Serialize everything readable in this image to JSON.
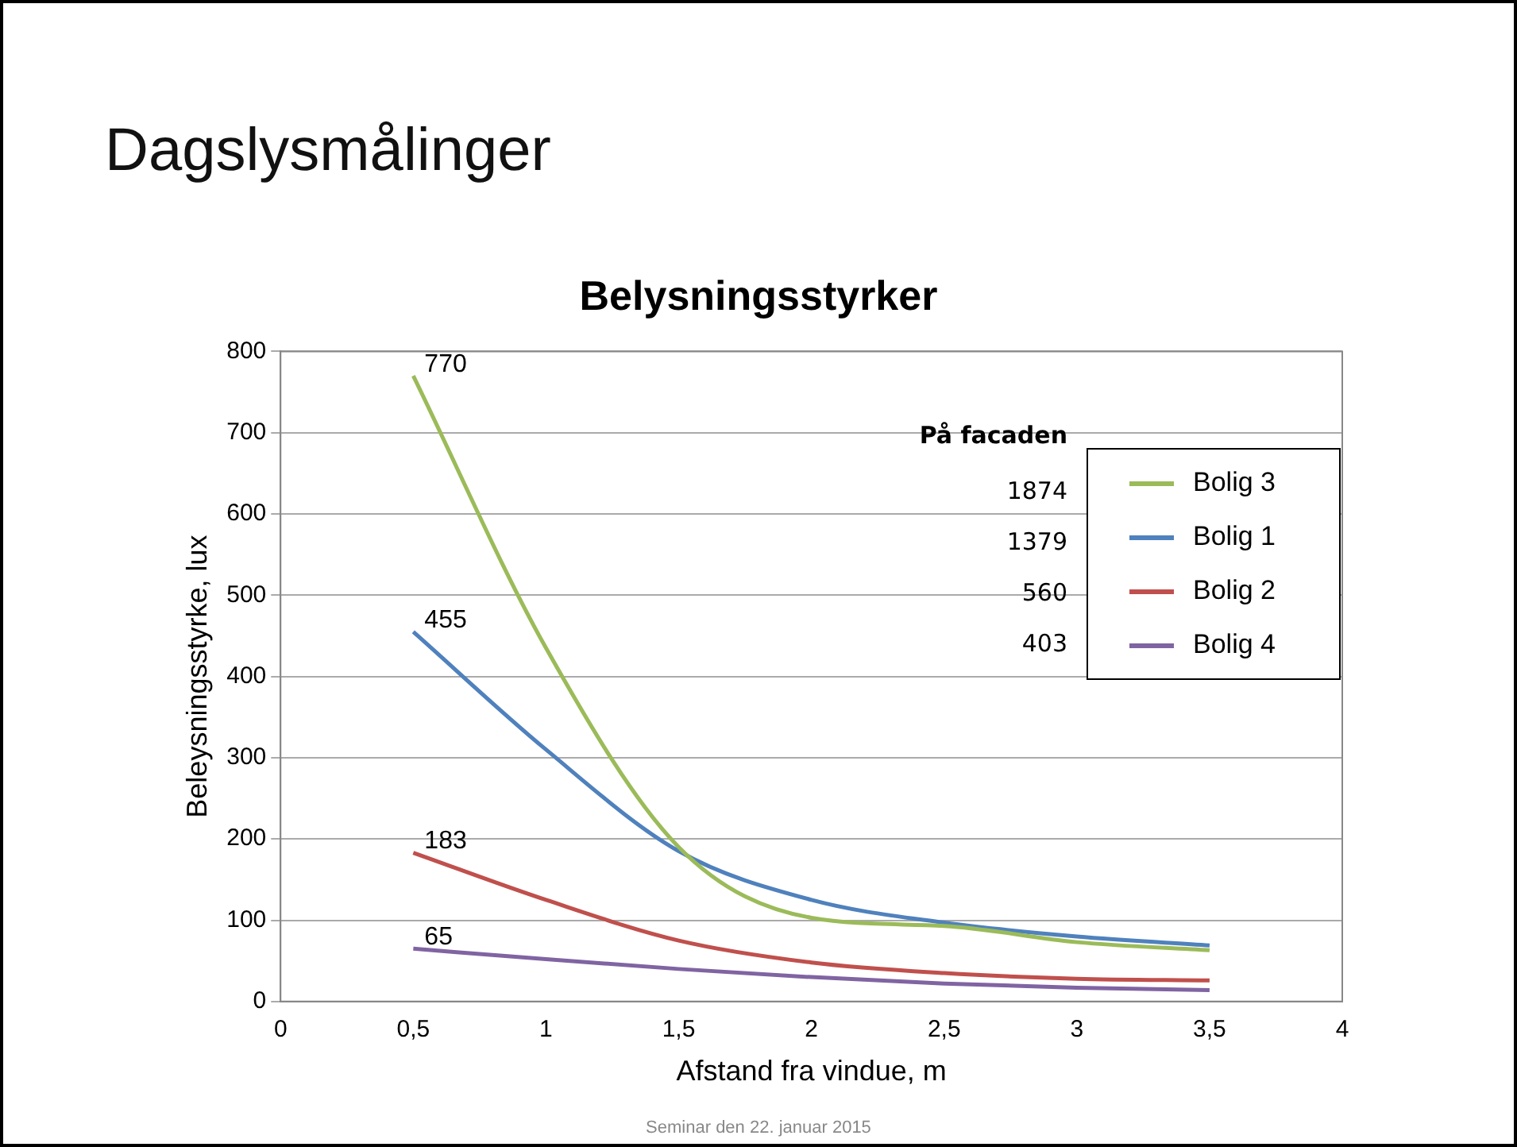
{
  "chart_data": {
    "type": "line",
    "title": "Dagslysmålinger",
    "subtitle": "Belysningsstyrker",
    "xlabel": "Afstand fra vindue, m",
    "ylabel": "Beleysningsstyrke, lux",
    "x": [
      0.5,
      1,
      1.5,
      2,
      2.5,
      3,
      3.5
    ],
    "series": [
      {
        "name": "Bolig 3",
        "color": "#9bbb59",
        "values": [
          770,
          435,
          190,
          103,
          93,
          73,
          63
        ],
        "value_labels": [
          "770",
          null,
          null,
          null,
          null,
          null,
          null
        ]
      },
      {
        "name": "Bolig 1",
        "color": "#4f81bd",
        "values": [
          455,
          310,
          185,
          125,
          97,
          80,
          69
        ],
        "value_labels": [
          "455",
          null,
          null,
          null,
          null,
          null,
          null
        ]
      },
      {
        "name": "Bolig 2",
        "color": "#c0504d",
        "values": [
          183,
          125,
          75,
          48,
          35,
          28,
          26
        ],
        "value_labels": [
          "183",
          null,
          null,
          null,
          null,
          null,
          null
        ]
      },
      {
        "name": "Bolig 4",
        "color": "#8064a2",
        "values": [
          65,
          52,
          40,
          30,
          22,
          17,
          14
        ],
        "value_labels": [
          "65",
          null,
          null,
          null,
          null,
          null,
          null
        ]
      }
    ],
    "xlim": [
      0,
      4
    ],
    "xticks": [
      0,
      {
        "value": 0.5,
        "label": "0,5"
      },
      1,
      {
        "value": 1.5,
        "label": "1,5"
      },
      2,
      {
        "value": 2.5,
        "label": "2,5"
      },
      3,
      {
        "value": 3.5,
        "label": "3,5"
      },
      4
    ],
    "ylim": [
      0,
      800
    ],
    "yticks": [
      0,
      100,
      200,
      300,
      400,
      500,
      600,
      700,
      800
    ],
    "grid": "y",
    "legend": "top right",
    "marker": "none",
    "line_style": "solid",
    "annotations": [
      "Seminar den 22. januar 2015",
      "På facaden",
      "1874",
      "1379",
      "560",
      "403"
    ]
  }
}
